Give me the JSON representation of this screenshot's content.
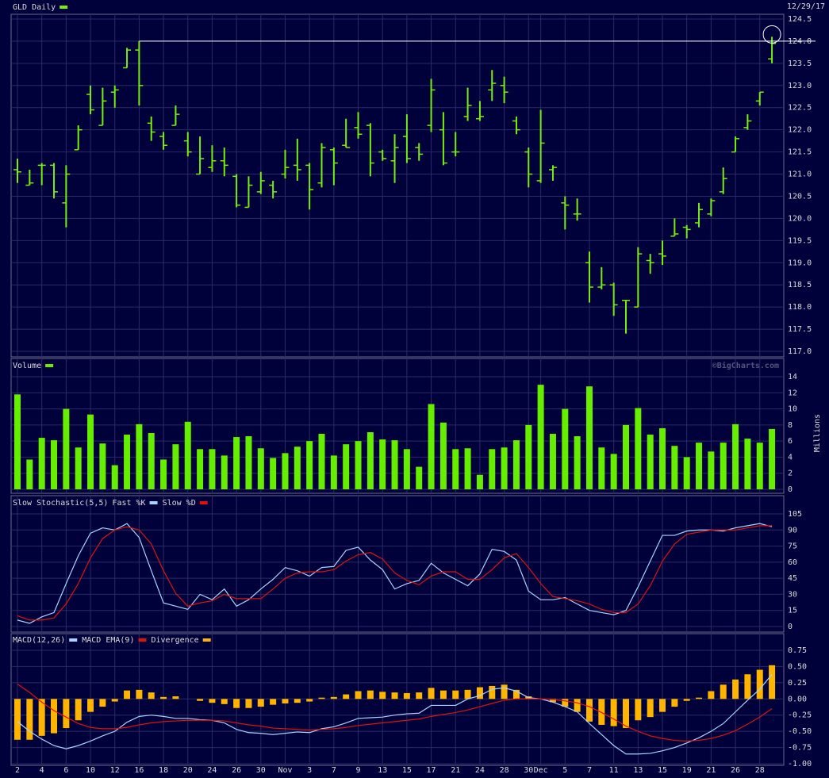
{
  "chart_data": [
    {
      "type": "ohlc",
      "title": "GLD Daily",
      "date": "12/29/17",
      "color": "#77ee11",
      "open": [
        121.1,
        120.75,
        121.2,
        121.2,
        120.35,
        121.55,
        122.8,
        122.1,
        122.85,
        123.4,
        123.8,
        122.15,
        121.85,
        122.1,
        121.75,
        121.0,
        121.15,
        121.3,
        120.95,
        120.25,
        120.6,
        120.75,
        121.0,
        121.2,
        121.2,
        120.8,
        121.55,
        121.65,
        122.05,
        122.1,
        121.5,
        121.3,
        121.85,
        121.6,
        122.1,
        122.0,
        121.5,
        122.3,
        122.25,
        122.9,
        123.0,
        122.2,
        121.5,
        120.85,
        121.1,
        120.35,
        120.1,
        119.0,
        118.45,
        118.5,
        118.15,
        118.0,
        119.05,
        119.2,
        119.6,
        119.8,
        119.9,
        120.1,
        120.6,
        121.5,
        122.05,
        122.65,
        123.6
      ],
      "high": [
        121.35,
        121.1,
        121.25,
        121.25,
        121.2,
        122.1,
        123.0,
        122.95,
        123.0,
        123.85,
        124.0,
        122.3,
        121.95,
        122.55,
        121.95,
        121.85,
        121.65,
        121.6,
        121.0,
        120.95,
        121.05,
        120.85,
        121.55,
        121.8,
        121.25,
        121.7,
        121.6,
        122.25,
        122.4,
        122.15,
        121.55,
        121.9,
        122.35,
        121.7,
        123.15,
        122.4,
        121.95,
        122.95,
        122.65,
        123.35,
        123.2,
        122.3,
        121.6,
        122.45,
        121.2,
        120.5,
        120.45,
        119.25,
        118.9,
        118.55,
        118.15,
        119.35,
        119.2,
        119.5,
        120.0,
        119.85,
        120.35,
        120.45,
        121.15,
        121.85,
        122.35,
        122.85,
        124.1
      ],
      "low": [
        120.8,
        120.75,
        120.75,
        120.45,
        119.8,
        121.55,
        122.35,
        122.1,
        122.5,
        123.4,
        122.55,
        121.75,
        121.55,
        122.1,
        121.4,
        121.0,
        121.05,
        120.95,
        120.25,
        120.25,
        120.55,
        120.45,
        120.9,
        120.85,
        120.2,
        120.7,
        120.75,
        121.6,
        121.8,
        120.95,
        121.3,
        120.8,
        121.25,
        121.3,
        121.95,
        121.2,
        121.4,
        122.2,
        122.2,
        122.65,
        122.6,
        121.9,
        120.7,
        120.8,
        120.85,
        119.75,
        119.95,
        118.1,
        118.4,
        117.8,
        117.4,
        118.0,
        118.75,
        118.95,
        119.6,
        119.55,
        119.8,
        120.05,
        120.55,
        121.5,
        122.0,
        122.55,
        123.5
      ],
      "close": [
        121.05,
        120.8,
        121.2,
        120.6,
        121.0,
        122.0,
        122.45,
        122.65,
        122.9,
        123.8,
        123.0,
        121.95,
        121.65,
        122.35,
        121.5,
        121.35,
        121.3,
        121.2,
        120.3,
        120.75,
        120.85,
        120.6,
        121.15,
        121.1,
        120.65,
        121.6,
        121.25,
        121.6,
        121.9,
        121.25,
        121.35,
        121.6,
        121.35,
        121.45,
        122.9,
        121.25,
        121.5,
        122.55,
        122.3,
        123.05,
        122.85,
        122.0,
        121.0,
        121.7,
        121.15,
        120.3,
        120.1,
        118.45,
        118.5,
        118.05,
        118.15,
        119.2,
        119.0,
        119.15,
        119.65,
        119.75,
        120.2,
        120.4,
        120.9,
        121.8,
        122.2,
        122.85,
        123.95
      ],
      "ylim": [
        117.0,
        124.5
      ],
      "yticks": [
        {
          "value": 117.0,
          "label": "117.0"
        },
        {
          "value": 117.5,
          "label": "117.5"
        },
        {
          "value": 118.0,
          "label": "118.0"
        },
        {
          "value": 118.5,
          "label": "118.5"
        },
        {
          "value": 119.0,
          "label": "119.0"
        },
        {
          "value": 119.5,
          "label": "119.5"
        },
        {
          "value": 120.0,
          "label": "120.0"
        },
        {
          "value": 120.5,
          "label": "120.5"
        },
        {
          "value": 121.0,
          "label": "121.0"
        },
        {
          "value": 121.5,
          "label": "121.5"
        },
        {
          "value": 122.0,
          "label": "122.0"
        },
        {
          "value": 122.5,
          "label": "122.5"
        },
        {
          "value": 123.0,
          "label": "123.0"
        },
        {
          "value": 123.5,
          "label": "123.5"
        },
        {
          "value": 124.0,
          "label": "124.0"
        },
        {
          "value": 124.5,
          "label": "124.5"
        }
      ],
      "grid": true
    },
    {
      "type": "bar",
      "title": "Volume",
      "credit": "©BigCharts.com",
      "ylabel": "Millions",
      "color": "#66ee00",
      "values": [
        11.8,
        3.7,
        6.4,
        6.1,
        10.0,
        5.2,
        9.3,
        5.7,
        3.0,
        6.8,
        8.1,
        7.0,
        3.7,
        5.6,
        8.4,
        5.0,
        5.0,
        4.2,
        6.5,
        6.6,
        5.1,
        3.9,
        4.5,
        5.3,
        6.0,
        6.9,
        4.2,
        5.6,
        6.0,
        7.1,
        6.2,
        6.1,
        5.0,
        2.8,
        10.6,
        8.3,
        5.0,
        5.1,
        1.8,
        5.0,
        5.2,
        6.1,
        8.0,
        13.0,
        6.9,
        10.0,
        6.6,
        12.8,
        5.2,
        4.4,
        8.0,
        10.1,
        6.8,
        7.6,
        5.4,
        4.0,
        5.8,
        4.7,
        5.8,
        8.1,
        6.3,
        5.8,
        7.5
      ],
      "ylim": [
        0,
        14
      ],
      "yticks": [
        0,
        2,
        4,
        6,
        8,
        10,
        12,
        14
      ],
      "grid": true
    },
    {
      "type": "line",
      "title": "Slow Stochastic(5,5)",
      "series": [
        {
          "name": "Fast %K",
          "color": "#a8d4ff",
          "values": [
            6,
            3,
            9,
            13,
            40,
            66,
            87,
            92,
            90,
            96,
            83,
            52,
            22,
            19,
            16,
            30,
            25,
            35,
            19,
            25,
            35,
            44,
            55,
            52,
            47,
            55,
            56,
            71,
            74,
            62,
            53,
            35,
            40,
            43,
            59,
            50,
            44,
            38,
            49,
            72,
            70,
            62,
            33,
            25,
            25,
            27,
            21,
            15,
            13,
            11,
            15,
            37,
            61,
            85,
            85,
            89,
            90,
            90,
            89,
            92,
            94,
            96,
            93
          ]
        },
        {
          "name": "Slow %D",
          "color": "#e01010",
          "values": [
            10,
            6,
            6,
            8,
            21,
            40,
            64,
            82,
            90,
            93,
            90,
            77,
            52,
            31,
            19,
            22,
            24,
            30,
            26,
            26,
            26,
            35,
            45,
            50,
            51,
            51,
            53,
            61,
            67,
            69,
            63,
            50,
            43,
            39,
            47,
            51,
            51,
            44,
            44,
            53,
            64,
            68,
            55,
            40,
            28,
            26,
            24,
            21,
            16,
            13,
            13,
            21,
            38,
            61,
            77,
            86,
            88,
            90,
            90,
            90,
            92,
            94,
            94
          ]
        }
      ],
      "ylim": [
        0,
        105
      ],
      "yticks": [
        0,
        15,
        30,
        45,
        60,
        75,
        90,
        105
      ],
      "grid": true
    },
    {
      "type": "macd",
      "series": [
        {
          "name": "MACD(12,26)",
          "type": "line",
          "color": "#a8d4ff",
          "values": [
            -0.35,
            -0.5,
            -0.62,
            -0.72,
            -0.77,
            -0.72,
            -0.65,
            -0.57,
            -0.5,
            -0.36,
            -0.27,
            -0.25,
            -0.27,
            -0.3,
            -0.3,
            -0.32,
            -0.33,
            -0.37,
            -0.47,
            -0.52,
            -0.53,
            -0.55,
            -0.53,
            -0.51,
            -0.52,
            -0.46,
            -0.43,
            -0.37,
            -0.3,
            -0.29,
            -0.28,
            -0.25,
            -0.23,
            -0.22,
            -0.1,
            -0.1,
            -0.1,
            0.0,
            0.05,
            0.15,
            0.17,
            0.12,
            0.02,
            0.0,
            -0.05,
            -0.12,
            -0.2,
            -0.38,
            -0.55,
            -0.72,
            -0.85,
            -0.85,
            -0.84,
            -0.8,
            -0.75,
            -0.68,
            -0.6,
            -0.5,
            -0.38,
            -0.2,
            -0.02,
            0.15,
            0.38
          ]
        },
        {
          "name": "MACD EMA(9)",
          "type": "line",
          "color": "#e01010",
          "values": [
            0.23,
            0.1,
            -0.05,
            -0.18,
            -0.28,
            -0.38,
            -0.44,
            -0.46,
            -0.46,
            -0.44,
            -0.4,
            -0.37,
            -0.35,
            -0.34,
            -0.33,
            -0.33,
            -0.33,
            -0.34,
            -0.37,
            -0.4,
            -0.42,
            -0.45,
            -0.46,
            -0.47,
            -0.48,
            -0.47,
            -0.46,
            -0.44,
            -0.41,
            -0.39,
            -0.37,
            -0.35,
            -0.33,
            -0.31,
            -0.27,
            -0.24,
            -0.21,
            -0.17,
            -0.12,
            -0.07,
            -0.02,
            0.0,
            0.0,
            0.0,
            -0.01,
            -0.03,
            -0.06,
            -0.12,
            -0.21,
            -0.31,
            -0.42,
            -0.5,
            -0.57,
            -0.61,
            -0.64,
            -0.65,
            -0.64,
            -0.61,
            -0.56,
            -0.49,
            -0.39,
            -0.28,
            -0.15
          ]
        },
        {
          "name": "Divergence",
          "type": "bar",
          "color": "#ffb400",
          "values": [
            -0.63,
            -0.63,
            -0.57,
            -0.53,
            -0.45,
            -0.33,
            -0.2,
            -0.12,
            -0.04,
            0.13,
            0.14,
            0.1,
            0.03,
            0.04,
            0.0,
            -0.03,
            -0.06,
            -0.08,
            -0.14,
            -0.14,
            -0.12,
            -0.09,
            -0.07,
            -0.06,
            -0.04,
            0.02,
            0.03,
            0.07,
            0.12,
            0.13,
            0.11,
            0.1,
            0.09,
            0.1,
            0.17,
            0.13,
            0.13,
            0.14,
            0.18,
            0.2,
            0.22,
            0.14,
            0.04,
            0.0,
            -0.05,
            -0.12,
            -0.2,
            -0.35,
            -0.4,
            -0.42,
            -0.45,
            -0.33,
            -0.28,
            -0.2,
            -0.12,
            -0.03,
            0.02,
            0.12,
            0.22,
            0.3,
            0.38,
            0.45,
            0.52
          ]
        }
      ],
      "categories": [
        "2",
        null,
        "4",
        null,
        "6",
        null,
        "10",
        null,
        "12",
        null,
        "16",
        null,
        "18",
        null,
        "20",
        null,
        "24",
        null,
        "26",
        null,
        "30",
        null,
        "Nov",
        null,
        "3",
        null,
        "7",
        null,
        "9",
        null,
        "13",
        null,
        "15",
        null,
        "17",
        null,
        "21",
        null,
        "24",
        null,
        "28",
        null,
        "30",
        "Dec",
        null,
        "5",
        null,
        "7",
        null,
        "11",
        null,
        "13",
        null,
        "15",
        null,
        "19",
        null,
        "21",
        null,
        "26",
        null,
        "28",
        null
      ],
      "ylim": [
        -1.0,
        0.75
      ],
      "yticks": [
        {
          "value": -1.0,
          "label": "-1.00"
        },
        {
          "value": -0.75,
          "label": "-0.75"
        },
        {
          "value": -0.5,
          "label": "-0.50"
        },
        {
          "value": -0.25,
          "label": "-0.25"
        },
        {
          "value": 0,
          "label": "0.00"
        },
        {
          "value": 0.25,
          "label": "0.25"
        },
        {
          "value": 0.5,
          "label": "0.50"
        },
        {
          "value": 0.75,
          "label": "0.75"
        }
      ],
      "grid": true
    }
  ]
}
